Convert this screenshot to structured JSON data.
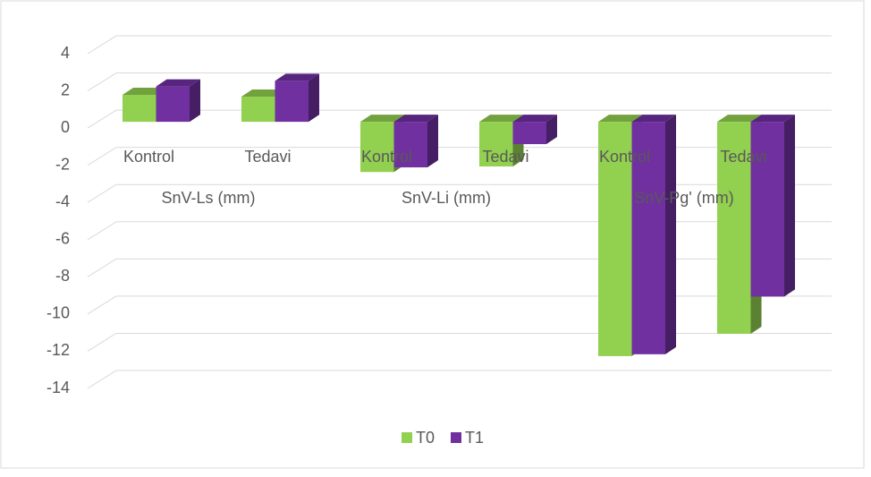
{
  "chart_data": {
    "type": "bar3d",
    "categories": [
      "Kontrol",
      "Tedavi",
      "Kontrol",
      "Tedavi",
      "Kontrol",
      "Tedavi"
    ],
    "groups": [
      "SnV-Ls (mm)",
      "SnV-Li (mm)",
      "SnV-Pg' (mm)"
    ],
    "series": [
      {
        "name": "T0",
        "color": "#92d050",
        "values": [
          1.45,
          1.35,
          -2.7,
          -2.4,
          -12.6,
          -11.4
        ]
      },
      {
        "name": "T1",
        "color": "#7030a0",
        "values": [
          1.9,
          2.2,
          -2.45,
          -1.2,
          -12.5,
          -9.4
        ]
      }
    ],
    "ylim": [
      -14,
      4
    ],
    "yticks": [
      4,
      2,
      0,
      -2,
      -4,
      -6,
      -8,
      -10,
      -12,
      -14
    ],
    "grid": true,
    "legend": "bottom"
  }
}
